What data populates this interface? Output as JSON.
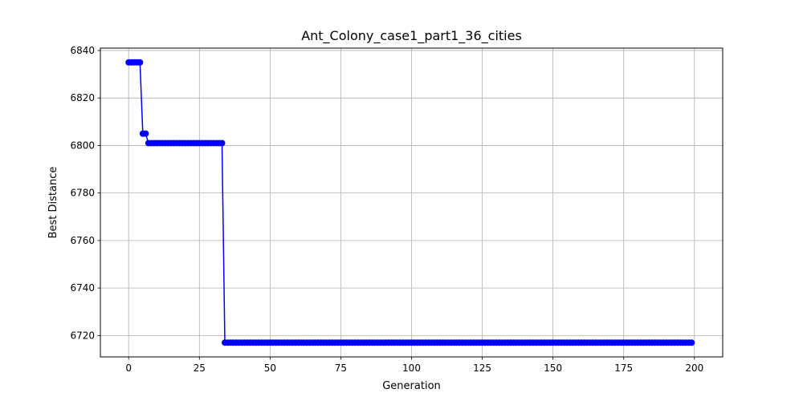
{
  "chart_data": {
    "type": "line",
    "title": "Ant_Colony_case1_part1_36_cities",
    "xlabel": "Generation",
    "ylabel": "Best Distance",
    "xlim": [
      -10,
      210
    ],
    "ylim": [
      6711,
      6841
    ],
    "xticks": [
      0,
      25,
      50,
      75,
      100,
      125,
      150,
      175,
      200
    ],
    "yticks": [
      6720,
      6740,
      6760,
      6780,
      6800,
      6820,
      6840
    ],
    "grid": true,
    "line_color": "#0000ff",
    "marker": "circle",
    "series": [
      {
        "segments": [
          {
            "from": 0,
            "to": 4,
            "value": 6835
          },
          {
            "from": 5,
            "to": 6,
            "value": 6805
          },
          {
            "from": 7,
            "to": 33,
            "value": 6801
          },
          {
            "from": 34,
            "to": 199,
            "value": 6717
          }
        ]
      }
    ]
  }
}
